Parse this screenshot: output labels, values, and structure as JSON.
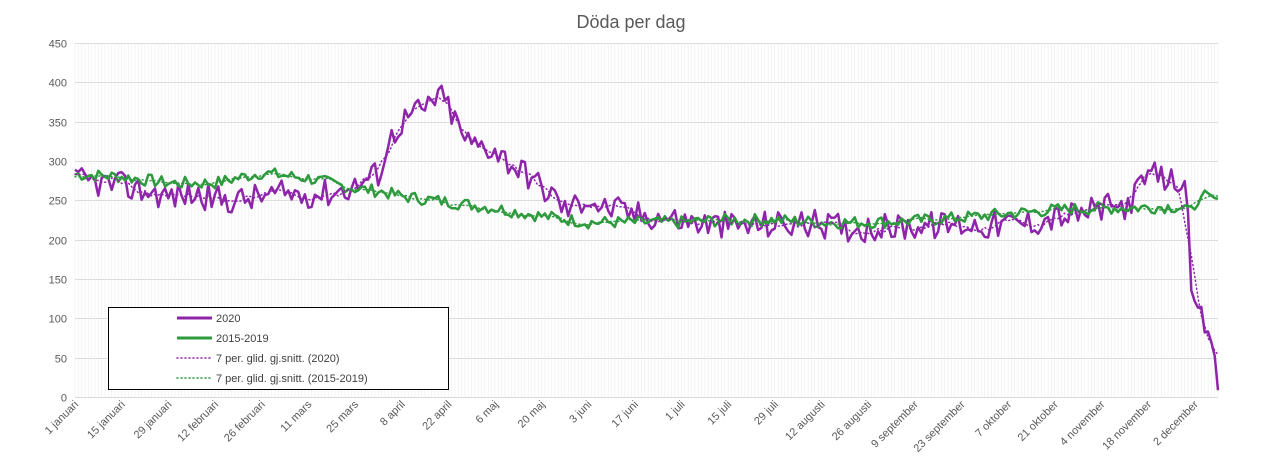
{
  "chart_data": {
    "type": "line",
    "title": "Döda per dag",
    "xlabel": "",
    "ylabel": "",
    "ylim": [
      0,
      450
    ],
    "yticks": [
      0,
      50,
      100,
      150,
      200,
      250,
      300,
      350,
      400,
      450
    ],
    "grid": true,
    "legend_placement": "bottom-left",
    "x_tick_labels": [
      "1 januari",
      "15 januari",
      "29 januari",
      "12 februari",
      "26 februari",
      "11 mars",
      "25 mars",
      "8 april",
      "22 april",
      "6 maj",
      "20 maj",
      "3 juni",
      "17 juni",
      "1 juli",
      "15 juli",
      "29 juli",
      "12 augusti",
      "26 augusti",
      "9 september",
      "23 september",
      "7 oktober",
      "21 oktober",
      "4 november",
      "18 november",
      "2 december"
    ],
    "x_tick_days": [
      1,
      15,
      29,
      43,
      57,
      71,
      85,
      99,
      113,
      127,
      141,
      155,
      169,
      183,
      197,
      211,
      225,
      239,
      253,
      267,
      281,
      295,
      309,
      323,
      337
    ],
    "x_range_days": [
      1,
      344
    ],
    "colors": {
      "2020": "#8e24aa",
      "2015-2019": "#2e9a3e"
    },
    "series": [
      {
        "name": "2020",
        "style": "solid",
        "anchor_days": [
          1,
          8,
          15,
          22,
          29,
          36,
          43,
          50,
          57,
          64,
          71,
          78,
          85,
          92,
          96,
          99,
          103,
          106,
          110,
          113,
          117,
          120,
          124,
          127,
          131,
          134,
          138,
          141,
          145,
          148,
          152,
          155,
          159,
          162,
          166,
          169,
          176,
          183,
          190,
          197,
          204,
          211,
          218,
          225,
          232,
          239,
          246,
          253,
          260,
          267,
          274,
          281,
          288,
          295,
          302,
          309,
          316,
          320,
          323,
          326,
          330,
          333,
          334,
          335,
          336,
          337,
          338,
          339,
          340,
          342,
          343,
          344
        ],
        "anchor_values": [
          275,
          272,
          268,
          262,
          255,
          258,
          252,
          250,
          255,
          258,
          258,
          260,
          268,
          285,
          330,
          350,
          362,
          365,
          385,
          370,
          335,
          320,
          320,
          315,
          300,
          290,
          280,
          265,
          255,
          238,
          245,
          255,
          240,
          240,
          235,
          232,
          230,
          224,
          220,
          218,
          218,
          220,
          220,
          220,
          215,
          215,
          215,
          218,
          218,
          220,
          218,
          220,
          222,
          228,
          232,
          240,
          242,
          262,
          282,
          280,
          275,
          278,
          270,
          230,
          130,
          118,
          114,
          110,
          85,
          72,
          55,
          5
        ]
      },
      {
        "name": "2015-2019",
        "style": "solid",
        "anchor_days": [
          1,
          15,
          29,
          43,
          57,
          71,
          85,
          92,
          99,
          113,
          127,
          141,
          155,
          169,
          183,
          197,
          211,
          225,
          239,
          253,
          267,
          281,
          295,
          309,
          323,
          330,
          337,
          340,
          344
        ],
        "anchor_values": [
          283,
          280,
          272,
          272,
          285,
          278,
          265,
          262,
          255,
          248,
          240,
          230,
          222,
          222,
          222,
          225,
          225,
          222,
          222,
          224,
          228,
          233,
          238,
          240,
          241,
          242,
          240,
          260,
          250
        ]
      },
      {
        "name": "7 per. glid. gj.snitt. (2020)",
        "style": "dotted",
        "derived_from": "2020",
        "window": 7
      },
      {
        "name": "7 per. glid. gj.snitt. (2015-2019)",
        "style": "dotted",
        "derived_from": "2015-2019",
        "window": 7
      }
    ]
  }
}
